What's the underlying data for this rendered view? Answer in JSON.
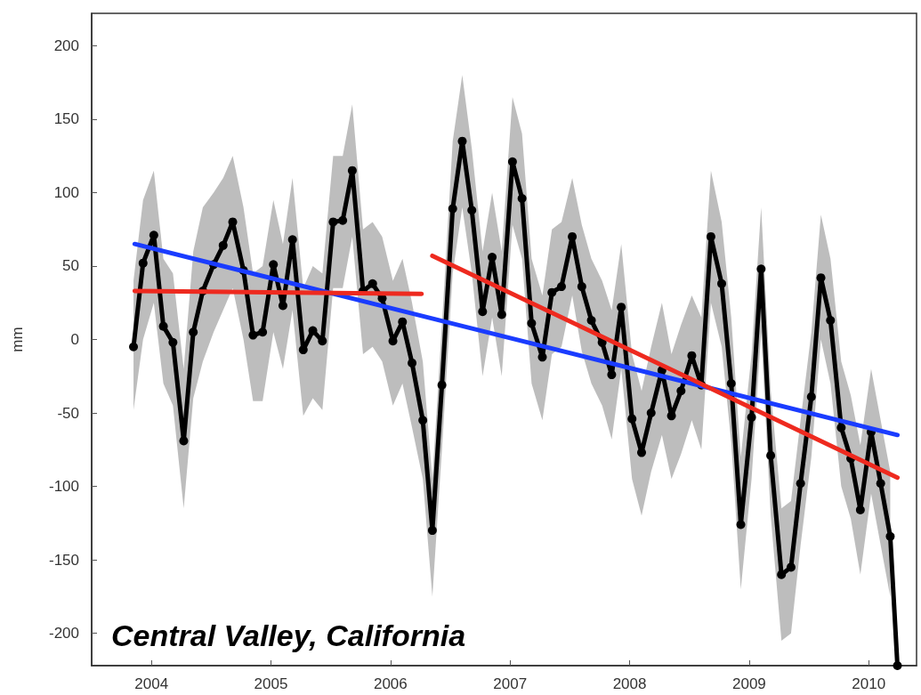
{
  "chart_data": {
    "type": "line",
    "ylabel": "mm",
    "annotations": [
      "Central Valley, California"
    ],
    "xlim": [
      2003.5,
      2010.4
    ],
    "xticks": [
      2004,
      2005,
      2006,
      2007,
      2008,
      2009,
      2010
    ],
    "ylim": [
      -222,
      222
    ],
    "yticks": [
      -200,
      -150,
      -100,
      -50,
      0,
      50,
      100,
      150,
      200
    ],
    "grid": false,
    "marker": "circle",
    "line_style": "solid",
    "series": [
      {
        "color": "#000000",
        "x": [
          2003.85,
          2003.93,
          2004.02,
          2004.1,
          2004.18,
          2004.27,
          2004.35,
          2004.43,
          2004.52,
          2004.6,
          2004.68,
          2004.77,
          2004.85,
          2004.93,
          2005.02,
          2005.1,
          2005.18,
          2005.27,
          2005.35,
          2005.43,
          2005.52,
          2005.6,
          2005.68,
          2005.77,
          2005.85,
          2005.93,
          2006.02,
          2006.1,
          2006.18,
          2006.27,
          2006.35,
          2006.43,
          2006.52,
          2006.6,
          2006.68,
          2006.77,
          2006.85,
          2006.93,
          2007.02,
          2007.1,
          2007.18,
          2007.27,
          2007.35,
          2007.43,
          2007.52,
          2007.6,
          2007.68,
          2007.77,
          2007.85,
          2007.93,
          2008.02,
          2008.1,
          2008.18,
          2008.27,
          2008.35,
          2008.43,
          2008.52,
          2008.6,
          2008.68,
          2008.77,
          2008.85,
          2008.93,
          2009.02,
          2009.1,
          2009.18,
          2009.27,
          2009.35,
          2009.43,
          2009.52,
          2009.6,
          2009.68,
          2009.77,
          2009.85,
          2009.93,
          2010.02,
          2010.1,
          2010.18,
          2010.24
        ],
        "values": [
          -5,
          52,
          71,
          9,
          -2,
          -69,
          5,
          33,
          51,
          64,
          80,
          47,
          3,
          5,
          51,
          23,
          68,
          -7,
          6,
          -1,
          80,
          81,
          115,
          33,
          38,
          28,
          -1,
          12,
          -16,
          -55,
          -130,
          -31,
          89,
          135,
          88,
          19,
          56,
          17,
          121,
          96,
          11,
          -12,
          32,
          36,
          70,
          36,
          13,
          -2,
          -24,
          22,
          -54,
          -77,
          -50,
          -21,
          -52,
          -35,
          -11,
          -31,
          70,
          38,
          -30,
          -126,
          -53,
          48,
          -79,
          -160,
          -155,
          -98,
          -39,
          42,
          13,
          -60,
          -81,
          -116,
          -63,
          -98,
          -134,
          -222
        ],
        "upper": [
          40,
          95,
          115,
          55,
          45,
          -20,
          60,
          90,
          100,
          110,
          125,
          90,
          45,
          50,
          95,
          65,
          110,
          35,
          50,
          45,
          125,
          125,
          160,
          75,
          80,
          70,
          40,
          55,
          25,
          -15,
          -95,
          10,
          135,
          180,
          130,
          60,
          100,
          60,
          165,
          140,
          55,
          30,
          75,
          80,
          110,
          78,
          55,
          40,
          20,
          65,
          -10,
          -35,
          -5,
          25,
          -10,
          10,
          30,
          15,
          115,
          80,
          15,
          -80,
          -10,
          90,
          -35,
          -115,
          -110,
          -55,
          5,
          85,
          55,
          -15,
          -38,
          -72,
          -20,
          -55,
          -90,
          null
        ],
        "lower": [
          -48,
          0,
          25,
          -30,
          -45,
          -115,
          -40,
          -15,
          5,
          20,
          35,
          0,
          -42,
          -42,
          5,
          -20,
          20,
          -52,
          -40,
          -48,
          35,
          35,
          70,
          -10,
          -5,
          -15,
          -45,
          -30,
          -60,
          -95,
          -175,
          -75,
          45,
          90,
          45,
          -25,
          15,
          -25,
          78,
          55,
          -30,
          -55,
          -10,
          -5,
          30,
          -8,
          -30,
          -45,
          -68,
          -20,
          -95,
          -120,
          -90,
          -65,
          -95,
          -78,
          -55,
          -75,
          25,
          -5,
          -70,
          -170,
          -95,
          5,
          -120,
          -205,
          -200,
          -140,
          -80,
          0,
          -30,
          -100,
          -122,
          -160,
          -105,
          -140,
          -175,
          null
        ]
      },
      {
        "color": "#1a3cff",
        "marker": "none",
        "x": [
          2003.86,
          2010.24
        ],
        "values": [
          65,
          -65
        ]
      },
      {
        "color": "#ee2a1f",
        "marker": "none",
        "x": [
          2003.86,
          2006.26
        ],
        "values": [
          33,
          31
        ]
      },
      {
        "color": "#ee2a1f",
        "marker": "none",
        "x": [
          2006.35,
          2010.24
        ],
        "values": [
          57,
          -94
        ]
      }
    ]
  }
}
